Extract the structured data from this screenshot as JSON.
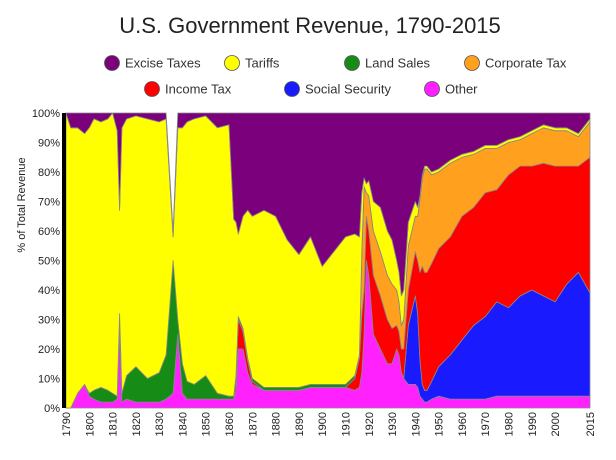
{
  "chart_data": {
    "type": "area",
    "stacked": true,
    "normalized_percent": true,
    "title": "U.S. Government Revenue, 1790-2015",
    "ylabel": "% of Total Revenue",
    "xlabel": "",
    "xlim": [
      1790,
      2015
    ],
    "ylim": [
      0,
      100
    ],
    "grid": false,
    "legend_position": "top",
    "x_ticks": [
      "1790",
      "1800",
      "1810",
      "1820",
      "1830",
      "1840",
      "1850",
      "1860",
      "1870",
      "1880",
      "1890",
      "1900",
      "1910",
      "1920",
      "1930",
      "1940",
      "1950",
      "1960",
      "1970",
      "1980",
      "1990",
      "2000",
      "2015"
    ],
    "y_ticks": [
      "0%",
      "10%",
      "20%",
      "30%",
      "40%",
      "50%",
      "60%",
      "70%",
      "80%",
      "90%",
      "100%"
    ],
    "x": [
      1790,
      1792,
      1795,
      1798,
      1800,
      1802,
      1805,
      1808,
      1810,
      1812,
      1813,
      1814,
      1816,
      1820,
      1825,
      1830,
      1833,
      1836,
      1838,
      1840,
      1842,
      1845,
      1850,
      1855,
      1860,
      1862,
      1863,
      1864,
      1866,
      1868,
      1870,
      1875,
      1880,
      1885,
      1890,
      1895,
      1900,
      1905,
      1910,
      1914,
      1916,
      1917,
      1918,
      1919,
      1920,
      1922,
      1925,
      1928,
      1930,
      1932,
      1933,
      1934,
      1935,
      1937,
      1940,
      1941,
      1942,
      1943,
      1944,
      1945,
      1947,
      1950,
      1955,
      1960,
      1965,
      1970,
      1975,
      1980,
      1985,
      1990,
      1995,
      2000,
      2005,
      2010,
      2015
    ],
    "series": [
      {
        "name": "Other",
        "color": "#ff22ff",
        "values": [
          0,
          0,
          5,
          8,
          4,
          3,
          2,
          2,
          2,
          3,
          28,
          2,
          3,
          2,
          2,
          2,
          3,
          5,
          25,
          5,
          3,
          3,
          3,
          3,
          3,
          3,
          6,
          20,
          20,
          12,
          8,
          6,
          6,
          6,
          6,
          7,
          7,
          7,
          7,
          6,
          7,
          12,
          25,
          50,
          45,
          25,
          20,
          15,
          15,
          20,
          18,
          12,
          10,
          8,
          8,
          7,
          4,
          3,
          2,
          2,
          3,
          4,
          3,
          3,
          3,
          3,
          4,
          4,
          4,
          4,
          4,
          4,
          4,
          4,
          4
        ]
      },
      {
        "name": "Social Security",
        "color": "#1a1aff",
        "values": [
          0,
          0,
          0,
          0,
          0,
          0,
          0,
          0,
          0,
          0,
          0,
          0,
          0,
          0,
          0,
          0,
          0,
          0,
          0,
          0,
          0,
          0,
          0,
          0,
          0,
          0,
          0,
          0,
          0,
          0,
          0,
          0,
          0,
          0,
          0,
          0,
          0,
          0,
          0,
          0,
          0,
          0,
          0,
          0,
          0,
          0,
          0,
          0,
          0,
          0,
          0,
          0,
          0,
          20,
          30,
          25,
          12,
          5,
          4,
          4,
          6,
          10,
          15,
          20,
          25,
          28,
          32,
          30,
          34,
          36,
          34,
          32,
          38,
          42,
          35
        ]
      },
      {
        "name": "Income Tax",
        "color": "#ff0000",
        "values": [
          0,
          0,
          0,
          0,
          0,
          0,
          0,
          0,
          0,
          0,
          0,
          0,
          0,
          0,
          0,
          0,
          0,
          0,
          0,
          0,
          0,
          0,
          0,
          0,
          0,
          0,
          4,
          10,
          6,
          4,
          1,
          0,
          0,
          0,
          0,
          0,
          0,
          0,
          0,
          4,
          10,
          20,
          15,
          15,
          15,
          20,
          18,
          15,
          12,
          8,
          8,
          8,
          10,
          12,
          15,
          18,
          30,
          40,
          40,
          40,
          40,
          40,
          40,
          42,
          40,
          42,
          38,
          45,
          44,
          42,
          45,
          46,
          40,
          36,
          46
        ]
      },
      {
        "name": "Corporate Tax",
        "color": "#ffa01e",
        "values": [
          0,
          0,
          0,
          0,
          0,
          0,
          0,
          0,
          0,
          0,
          0,
          0,
          0,
          0,
          0,
          0,
          0,
          0,
          0,
          0,
          0,
          0,
          0,
          0,
          0,
          0,
          0,
          0,
          0,
          0,
          0,
          0,
          0,
          0,
          0,
          0,
          0,
          0,
          0,
          0,
          0,
          20,
          35,
          8,
          12,
          15,
          15,
          15,
          15,
          12,
          10,
          8,
          10,
          15,
          12,
          15,
          25,
          30,
          35,
          35,
          30,
          26,
          25,
          20,
          18,
          15,
          14,
          11,
          9,
          11,
          12,
          12,
          12,
          10,
          12
        ]
      },
      {
        "name": "Land Sales",
        "color": "#168c16",
        "values": [
          0,
          0,
          0,
          0,
          1,
          3,
          5,
          4,
          3,
          1,
          4,
          3,
          8,
          12,
          8,
          10,
          15,
          45,
          5,
          10,
          6,
          5,
          8,
          2,
          1,
          1,
          1,
          1,
          1,
          1,
          1,
          1,
          1,
          1,
          1,
          1,
          1,
          1,
          1,
          1,
          1,
          1,
          0,
          0,
          0,
          0,
          0,
          0,
          0,
          0,
          0,
          0,
          0,
          0,
          0,
          0,
          0,
          0,
          0,
          0,
          0,
          0,
          0,
          0,
          0,
          0,
          0,
          0,
          0,
          0,
          0,
          0,
          0,
          0,
          0
        ]
      },
      {
        "name": "Tariffs",
        "color": "#ffff00",
        "values": [
          100,
          95,
          90,
          85,
          90,
          92,
          90,
          92,
          95,
          90,
          35,
          90,
          87,
          85,
          88,
          85,
          80,
          8,
          65,
          80,
          88,
          90,
          88,
          90,
          92,
          60,
          52,
          28,
          38,
          50,
          55,
          60,
          58,
          50,
          45,
          50,
          40,
          45,
          50,
          48,
          40,
          20,
          3,
          3,
          5,
          10,
          15,
          15,
          15,
          10,
          10,
          10,
          10,
          8,
          5,
          3,
          1,
          1,
          1,
          1,
          1,
          1,
          1,
          1,
          1,
          1,
          1,
          1,
          1,
          1,
          1,
          1,
          1,
          1,
          1
        ]
      },
      {
        "name": "Excise Taxes",
        "color": "#7b007b",
        "values": [
          0,
          5,
          5,
          7,
          5,
          2,
          3,
          2,
          0,
          6,
          33,
          5,
          2,
          1,
          2,
          3,
          2,
          2,
          5,
          5,
          3,
          2,
          1,
          5,
          4,
          36,
          37,
          41,
          35,
          33,
          35,
          33,
          35,
          43,
          48,
          42,
          52,
          47,
          42,
          41,
          42,
          27,
          22,
          24,
          23,
          30,
          32,
          40,
          43,
          50,
          54,
          62,
          60,
          37,
          30,
          32,
          28,
          21,
          18,
          18,
          20,
          19,
          16,
          14,
          13,
          11,
          11,
          9,
          8,
          6,
          4,
          5,
          5,
          7,
          3
        ]
      }
    ]
  }
}
